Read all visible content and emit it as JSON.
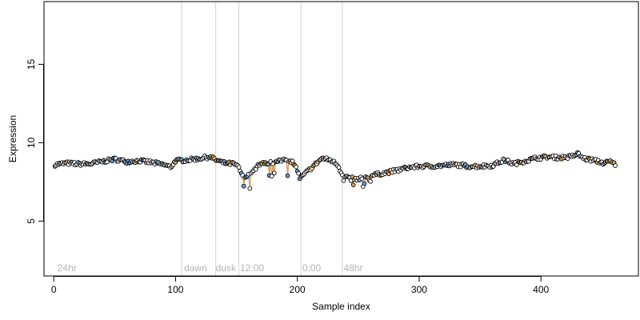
{
  "chart_data": {
    "type": "scatter",
    "title": "",
    "xlabel": "Sample index",
    "ylabel": "Expression",
    "xlim": [
      -8,
      480
    ],
    "ylim": [
      1.5,
      19.0
    ],
    "x_ticks": [
      0,
      100,
      200,
      300,
      400
    ],
    "y_ticks": [
      5,
      10,
      15
    ],
    "grid": false,
    "legend": "none",
    "vlines": [
      105,
      133,
      152,
      203,
      237
    ],
    "annotations": [
      {
        "x": 3,
        "y": 2.0,
        "text": "24hr"
      },
      {
        "x": 107,
        "y": 2.0,
        "text": "dawn"
      },
      {
        "x": 133,
        "y": 2.0,
        "text": "dusk"
      },
      {
        "x": 153,
        "y": 2.0,
        "text": "12:00"
      },
      {
        "x": 204,
        "y": 2.0,
        "text": "0:00"
      },
      {
        "x": 238,
        "y": 2.0,
        "text": "48hr"
      }
    ],
    "anchors": [
      [
        1,
        8.6
      ],
      [
        10,
        8.7
      ],
      [
        20,
        8.65
      ],
      [
        30,
        8.65
      ],
      [
        40,
        8.8
      ],
      [
        50,
        8.95
      ],
      [
        60,
        8.8
      ],
      [
        70,
        8.85
      ],
      [
        80,
        8.75
      ],
      [
        90,
        8.6
      ],
      [
        96,
        8.45
      ],
      [
        100,
        8.85
      ],
      [
        110,
        8.9
      ],
      [
        120,
        9.0
      ],
      [
        128,
        9.1
      ],
      [
        133,
        8.9
      ],
      [
        140,
        8.7
      ],
      [
        148,
        8.65
      ],
      [
        152,
        8.4
      ],
      [
        155,
        7.85
      ],
      [
        162,
        8.0
      ],
      [
        168,
        8.6
      ],
      [
        175,
        8.7
      ],
      [
        182,
        8.75
      ],
      [
        190,
        9.0
      ],
      [
        196,
        8.8
      ],
      [
        199,
        8.5
      ],
      [
        202,
        7.7
      ],
      [
        206,
        8.0
      ],
      [
        213,
        8.5
      ],
      [
        220,
        9.0
      ],
      [
        227,
        8.9
      ],
      [
        233,
        8.6
      ],
      [
        236,
        8.1
      ],
      [
        240,
        7.8
      ],
      [
        250,
        7.7
      ],
      [
        260,
        7.9
      ],
      [
        270,
        8.05
      ],
      [
        280,
        8.2
      ],
      [
        290,
        8.4
      ],
      [
        300,
        8.5
      ],
      [
        310,
        8.5
      ],
      [
        320,
        8.55
      ],
      [
        330,
        8.6
      ],
      [
        340,
        8.5
      ],
      [
        350,
        8.5
      ],
      [
        360,
        8.55
      ],
      [
        370,
        8.9
      ],
      [
        378,
        8.65
      ],
      [
        385,
        8.8
      ],
      [
        395,
        9.0
      ],
      [
        405,
        9.1
      ],
      [
        415,
        9.05
      ],
      [
        425,
        9.1
      ],
      [
        430,
        9.3
      ],
      [
        435,
        9.0
      ],
      [
        445,
        8.85
      ],
      [
        452,
        8.7
      ],
      [
        457,
        8.8
      ],
      [
        461,
        8.6
      ]
    ],
    "n_points": 461,
    "colors": {
      "point_default": "#000000",
      "point_orange": "#e6a34b",
      "point_blue": "#6ba3d6",
      "line_orange": "#d9a35c",
      "line_blue": "#6d8fcf",
      "vline": "#d3d3d3"
    }
  }
}
